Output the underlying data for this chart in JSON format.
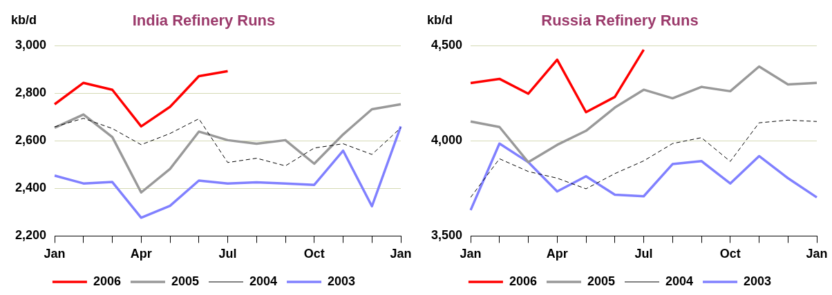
{
  "chart_data": [
    {
      "type": "line",
      "title": "India Refinery Runs",
      "ylabel": "kb/d",
      "categories": [
        "Jan",
        null,
        null,
        "Apr",
        null,
        null,
        "Jul",
        null,
        null,
        "Oct",
        null,
        null,
        "Jan"
      ],
      "series": [
        {
          "name": "2006",
          "color": "#ff0000",
          "values": [
            2754,
            2844,
            2815,
            2661,
            2743,
            2872,
            2893,
            null,
            null,
            null,
            null,
            null,
            null
          ]
        },
        {
          "name": "2005",
          "color": "#999999",
          "values": [
            2655,
            2711,
            2616,
            2383,
            2482,
            2639,
            2603,
            2588,
            2603,
            2504,
            2627,
            2733,
            2754
          ]
        },
        {
          "name": "2004",
          "color": "#000000",
          "line_style": "dashed",
          "values": [
            2659,
            2695,
            2652,
            2584,
            2631,
            2693,
            2509,
            2527,
            2495,
            2570,
            2588,
            2543,
            2655
          ]
        },
        {
          "name": "2003",
          "color": "#8080ff",
          "values": [
            2454,
            2421,
            2427,
            2277,
            2327,
            2433,
            2421,
            2426,
            2421,
            2415,
            2559,
            2325,
            2661
          ]
        }
      ],
      "ylim": [
        2200,
        3000
      ],
      "yticks": [
        {
          "value": 2200,
          "label": "2,200"
        },
        {
          "value": 2400,
          "label": "2,400"
        },
        {
          "value": 2600,
          "label": "2,600"
        },
        {
          "value": 2800,
          "label": "2,800"
        },
        {
          "value": 3000,
          "label": "3,000"
        }
      ],
      "grid": "y",
      "legend": "bottom"
    },
    {
      "type": "line",
      "title": "Russia Refinery Runs",
      "ylabel": "kb/d",
      "categories": [
        "Jan",
        null,
        null,
        "Apr",
        null,
        null,
        "Jul",
        null,
        null,
        "Oct",
        null,
        null,
        "Jan"
      ],
      "series": [
        {
          "name": "2006",
          "color": "#ff0000",
          "values": [
            4304,
            4326,
            4248,
            4427,
            4151,
            4231,
            4479,
            null,
            null,
            null,
            null,
            null,
            null
          ]
        },
        {
          "name": "2005",
          "color": "#999999",
          "values": [
            4102,
            4073,
            3888,
            3979,
            4053,
            4175,
            4269,
            4224,
            4284,
            4261,
            4391,
            4297,
            4305
          ]
        },
        {
          "name": "2004",
          "color": "#000000",
          "line_style": "dashed",
          "values": [
            3703,
            3906,
            3839,
            3804,
            3748,
            3828,
            3895,
            3986,
            4017,
            3892,
            4095,
            4109,
            4102
          ]
        },
        {
          "name": "2003",
          "color": "#8080ff",
          "values": [
            3636,
            3986,
            3888,
            3734,
            3814,
            3717,
            3709,
            3878,
            3894,
            3776,
            3920,
            3804,
            3703
          ]
        }
      ],
      "ylim": [
        3500,
        4500
      ],
      "yticks": [
        {
          "value": 3500,
          "label": "3,500"
        },
        {
          "value": 4000,
          "label": "4,000"
        },
        {
          "value": 4500,
          "label": "4,500"
        }
      ],
      "grid": "y",
      "legend": "bottom"
    }
  ]
}
